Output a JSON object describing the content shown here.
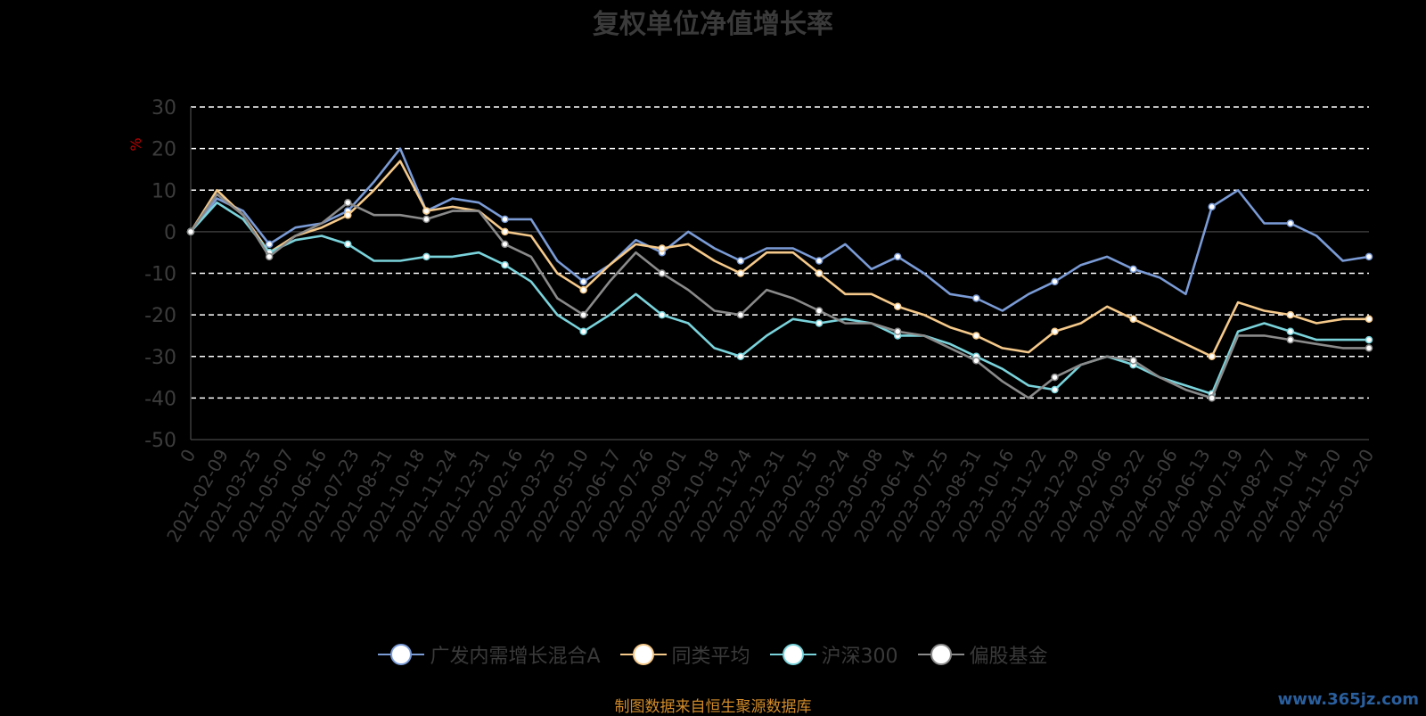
{
  "chart_data": {
    "type": "line",
    "title": "复权单位净值增长率",
    "ylabel": "%",
    "ylim": [
      -50,
      30
    ],
    "yticks": [
      30,
      20,
      10,
      0,
      -10,
      -20,
      -30,
      -40,
      -50
    ],
    "grid": true,
    "x_tick_labels": [
      "0",
      "2021-02-09",
      "2021-03-25",
      "2021-05-07",
      "2021-06-16",
      "2021-07-23",
      "2021-08-31",
      "2021-10-18",
      "2021-11-24",
      "2021-12-31",
      "2022-02-16",
      "2022-03-25",
      "2022-05-10",
      "2022-06-17",
      "2022-07-26",
      "2022-09-01",
      "2022-10-18",
      "2022-11-24",
      "2022-12-31",
      "2023-02-15",
      "2023-03-24",
      "2023-05-08",
      "2023-06-14",
      "2023-07-25",
      "2023-08-31",
      "2023-10-16",
      "2023-11-22",
      "2023-12-29",
      "2024-02-06",
      "2024-03-22",
      "2024-05-06",
      "2024-06-13",
      "2024-07-19",
      "2024-08-27",
      "2024-10-14",
      "2024-11-20",
      "2025-01-20"
    ],
    "legend_position": "bottom",
    "series": [
      {
        "name": "广发内需增长混合A",
        "color": "#7a9bd6",
        "values": [
          0,
          8,
          5,
          -3,
          1,
          2,
          5,
          12,
          20,
          5,
          8,
          7,
          3,
          3,
          -7,
          -12,
          -8,
          -2,
          -5,
          0,
          -4,
          -7,
          -4,
          -4,
          -7,
          -3,
          -9,
          -6,
          -10,
          -15,
          -16,
          -19,
          -15,
          -12,
          -8,
          -6,
          -9,
          -11,
          -15,
          6,
          10,
          2,
          2,
          -1,
          -7,
          -6
        ]
      },
      {
        "name": "同类平均",
        "color": "#f5c98a",
        "values": [
          0,
          10,
          4,
          -5,
          -1,
          1,
          4,
          10,
          17,
          5,
          6,
          5,
          0,
          -1,
          -10,
          -14,
          -8,
          -3,
          -4,
          -3,
          -7,
          -10,
          -5,
          -5,
          -10,
          -15,
          -15,
          -18,
          -20,
          -23,
          -25,
          -28,
          -29,
          -24,
          -22,
          -18,
          -21,
          -24,
          -27,
          -30,
          -17,
          -19,
          -20,
          -22,
          -21,
          -21
        ]
      },
      {
        "name": "沪深300",
        "color": "#7ad3db",
        "values": [
          0,
          7,
          3,
          -5,
          -2,
          -1,
          -3,
          -7,
          -7,
          -6,
          -6,
          -5,
          -8,
          -12,
          -20,
          -24,
          -20,
          -15,
          -20,
          -22,
          -28,
          -30,
          -25,
          -21,
          -22,
          -21,
          -22,
          -25,
          -25,
          -27,
          -30,
          -33,
          -37,
          -38,
          -32,
          -30,
          -32,
          -35,
          -37,
          -39,
          -24,
          -22,
          -24,
          -26,
          -26,
          -26
        ]
      },
      {
        "name": "偏股基金",
        "color": "#8a8a8a",
        "values": [
          0,
          9,
          4,
          -6,
          -1,
          2,
          7,
          4,
          4,
          3,
          5,
          5,
          -3,
          -6,
          -16,
          -20,
          -12,
          -5,
          -10,
          -14,
          -19,
          -20,
          -14,
          -16,
          -19,
          -22,
          -22,
          -24,
          -25,
          -28,
          -31,
          -36,
          -40,
          -35,
          -32,
          -30,
          -31,
          -35,
          -38,
          -40,
          -25,
          -25,
          -26,
          -27,
          -28,
          -28
        ]
      }
    ]
  },
  "source_note": "制图数据来自恒生聚源数据库",
  "watermark": "www.365jz.com"
}
